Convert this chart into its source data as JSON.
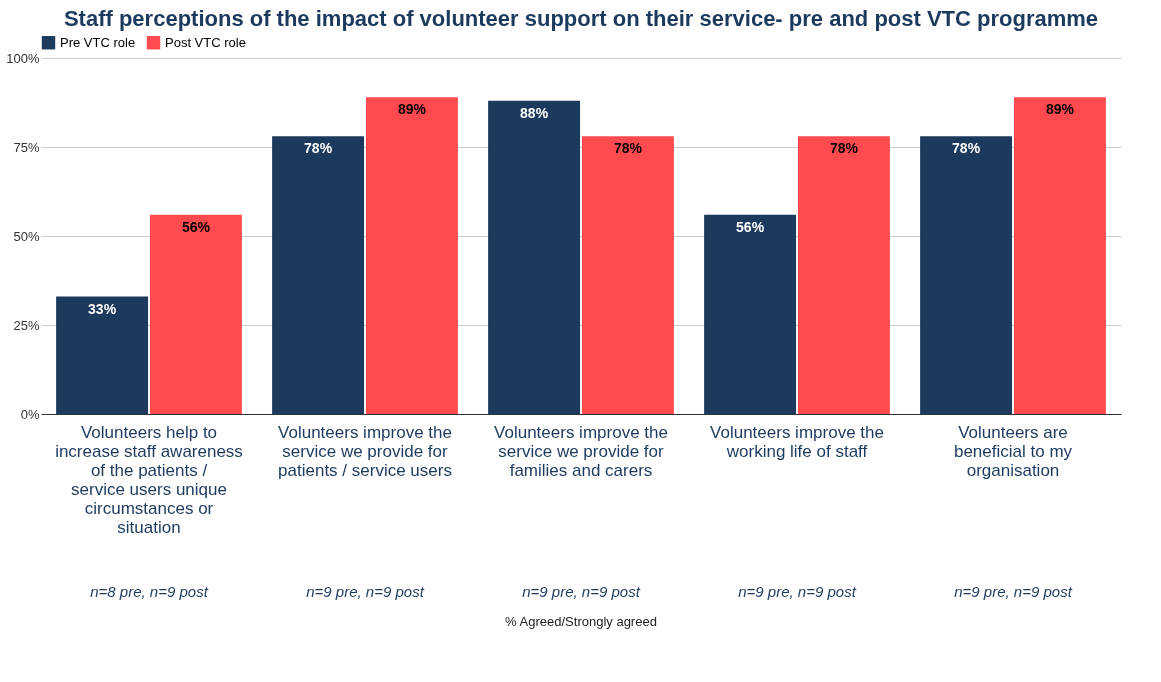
{
  "chart_data": {
    "type": "bar",
    "title": "Staff perceptions of the impact of volunteer support on their service- pre and post VTC programme",
    "categories": [
      "Volunteers help to increase staff awareness of the patients / service users unique circumstances or situation",
      "Volunteers improve the service we provide for patients / service users",
      "Volunteers improve the service we provide for families and carers",
      "Volunteers improve the working life of staff",
      "Volunteers are beneficial to my organisation"
    ],
    "series": [
      {
        "name": "Pre VTC role",
        "color": "#1c3a5e",
        "values": [
          33,
          78,
          88,
          56,
          78
        ]
      },
      {
        "name": "Post VTC role",
        "color": "#ff4b4f",
        "values": [
          56,
          89,
          78,
          78,
          89
        ]
      }
    ],
    "ylim": [
      0,
      100
    ],
    "yticks": [
      {
        "value": 0,
        "label": "0%"
      },
      {
        "value": 25,
        "label": "25%"
      },
      {
        "value": 50,
        "label": "50%"
      },
      {
        "value": 75,
        "label": "75%"
      },
      {
        "value": 100,
        "label": "100%"
      }
    ],
    "value_labels": [
      [
        "33%",
        "78%",
        "88%",
        "56%",
        "78%"
      ],
      [
        "56%",
        "89%",
        "78%",
        "78%",
        "89%"
      ]
    ],
    "annotations": [
      "n=8 pre, n=9 post",
      "n=9 pre, n=9 post",
      "n=9 pre, n=9 post",
      "n=9 pre, n=9 post",
      "n=9 pre, n=9 post",
      "% Agreed/Strongly agreed"
    ],
    "grid": "y",
    "legend": "top"
  }
}
